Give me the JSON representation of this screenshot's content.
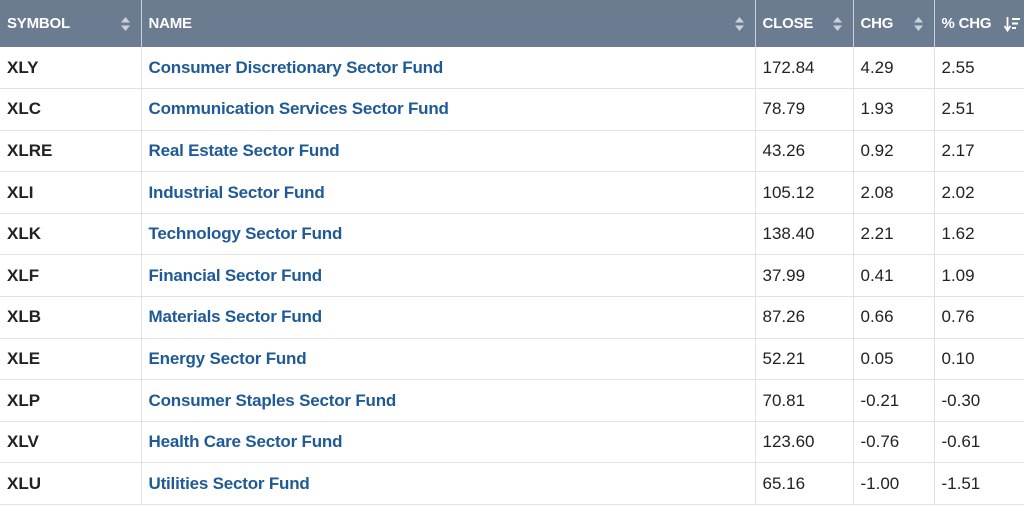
{
  "headers": {
    "symbol": "SYMBOL",
    "name": "NAME",
    "close": "CLOSE",
    "chg": "CHG",
    "pct_chg": "% CHG"
  },
  "colors": {
    "header_bg": "#6c7c90",
    "link": "#1f5a97"
  },
  "rows": [
    {
      "symbol": "XLY",
      "name": "Consumer Discretionary Sector Fund",
      "close": "172.84",
      "chg": "4.29",
      "pct": "2.55"
    },
    {
      "symbol": "XLC",
      "name": "Communication Services Sector Fund",
      "close": "78.79",
      "chg": "1.93",
      "pct": "2.51"
    },
    {
      "symbol": "XLRE",
      "name": "Real Estate Sector Fund",
      "close": "43.26",
      "chg": "0.92",
      "pct": "2.17"
    },
    {
      "symbol": "XLI",
      "name": "Industrial Sector Fund",
      "close": "105.12",
      "chg": "2.08",
      "pct": "2.02"
    },
    {
      "symbol": "XLK",
      "name": "Technology Sector Fund",
      "close": "138.40",
      "chg": "2.21",
      "pct": "1.62"
    },
    {
      "symbol": "XLF",
      "name": "Financial Sector Fund",
      "close": "37.99",
      "chg": "0.41",
      "pct": "1.09"
    },
    {
      "symbol": "XLB",
      "name": "Materials Sector Fund",
      "close": "87.26",
      "chg": "0.66",
      "pct": "0.76"
    },
    {
      "symbol": "XLE",
      "name": "Energy Sector Fund",
      "close": "52.21",
      "chg": "0.05",
      "pct": "0.10"
    },
    {
      "symbol": "XLP",
      "name": "Consumer Staples Sector Fund",
      "close": "70.81",
      "chg": "-0.21",
      "pct": "-0.30"
    },
    {
      "symbol": "XLV",
      "name": "Health Care Sector Fund",
      "close": "123.60",
      "chg": "-0.76",
      "pct": "-0.61"
    },
    {
      "symbol": "XLU",
      "name": "Utilities Sector Fund",
      "close": "65.16",
      "chg": "-1.00",
      "pct": "-1.51"
    }
  ]
}
